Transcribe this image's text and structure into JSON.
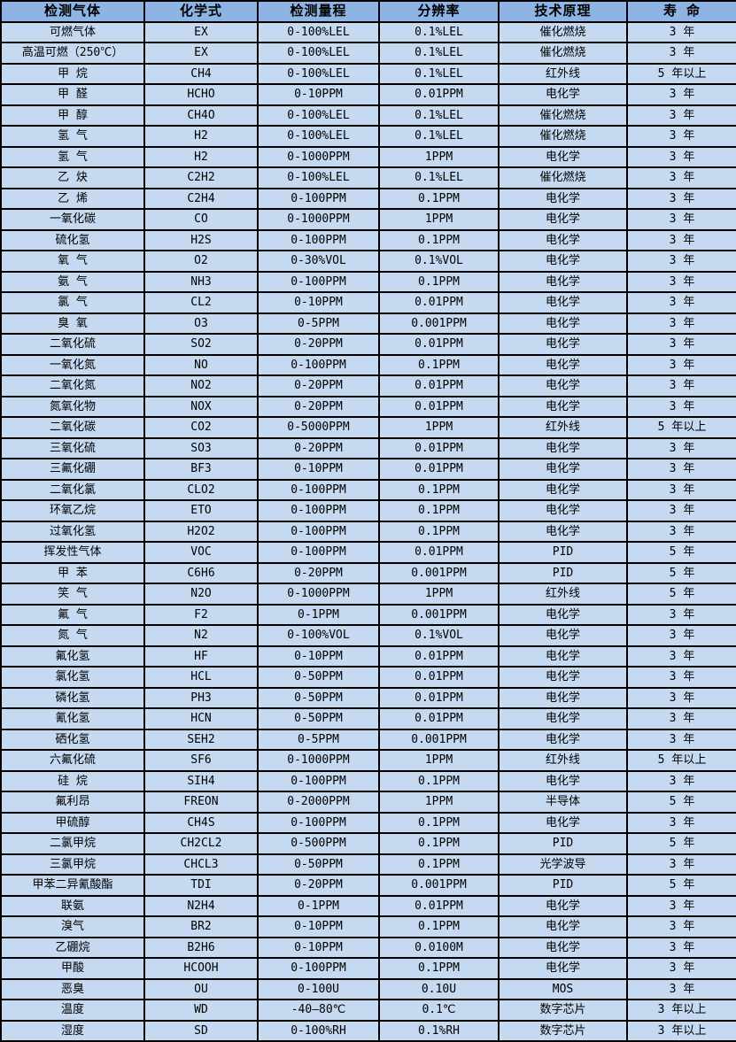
{
  "colors": {
    "header_bg": "#8DB4E2",
    "row_bg": "#C5D9F1",
    "border": "#000000",
    "text": "#000000"
  },
  "table": {
    "columns": [
      "检测气体",
      "化学式",
      "检测量程",
      "分辨率",
      "技术原理",
      "寿 命"
    ],
    "rows": [
      [
        "可燃气体",
        "EX",
        "0-100%LEL",
        "0.1%LEL",
        "催化燃烧",
        "3 年"
      ],
      [
        "高温可燃（250℃）",
        "EX",
        "0-100%LEL",
        "0.1%LEL",
        "催化燃烧",
        "3 年"
      ],
      [
        "甲 烷",
        "CH4",
        "0-100%LEL",
        "0.1%LEL",
        "红外线",
        "5 年以上"
      ],
      [
        "甲 醛",
        "HCHO",
        "0-10PPM",
        "0.01PPM",
        "电化学",
        "3 年"
      ],
      [
        "甲 醇",
        "CH4O",
        "0-100%LEL",
        "0.1%LEL",
        "催化燃烧",
        "3 年"
      ],
      [
        "氢 气",
        "H2",
        "0-100%LEL",
        "0.1%LEL",
        "催化燃烧",
        "3 年"
      ],
      [
        "氢 气",
        "H2",
        "0-1000PPM",
        "1PPM",
        "电化学",
        "3 年"
      ],
      [
        "乙 炔",
        "C2H2",
        "0-100%LEL",
        "0.1%LEL",
        "催化燃烧",
        "3 年"
      ],
      [
        "乙 烯",
        "C2H4",
        "0-100PPM",
        "0.1PPM",
        "电化学",
        "3 年"
      ],
      [
        "一氧化碳",
        "CO",
        "0-1000PPM",
        "1PPM",
        "电化学",
        "3 年"
      ],
      [
        "硫化氢",
        "H2S",
        "0-100PPM",
        "0.1PPM",
        "电化学",
        "3 年"
      ],
      [
        "氧 气",
        "O2",
        "0-30%VOL",
        "0.1%VOL",
        "电化学",
        "3 年"
      ],
      [
        "氨 气",
        "NH3",
        "0-100PPM",
        "0.1PPM",
        "电化学",
        "3 年"
      ],
      [
        "氯 气",
        "CL2",
        "0-10PPM",
        "0.01PPM",
        "电化学",
        "3 年"
      ],
      [
        "臭 氧",
        "O3",
        "0-5PPM",
        "0.001PPM",
        "电化学",
        "3 年"
      ],
      [
        "二氧化硫",
        "SO2",
        "0-20PPM",
        "0.01PPM",
        "电化学",
        "3 年"
      ],
      [
        "一氧化氮",
        "NO",
        "0-100PPM",
        "0.1PPM",
        "电化学",
        "3 年"
      ],
      [
        "二氧化氮",
        "NO2",
        "0-20PPM",
        "0.01PPM",
        "电化学",
        "3 年"
      ],
      [
        "氮氧化物",
        "NOX",
        "0-20PPM",
        "0.01PPM",
        "电化学",
        "3 年"
      ],
      [
        "二氧化碳",
        "CO2",
        "0-5000PPM",
        "1PPM",
        "红外线",
        "5 年以上"
      ],
      [
        "三氧化硫",
        "SO3",
        "0-20PPM",
        "0.01PPM",
        "电化学",
        "3 年"
      ],
      [
        "三氟化硼",
        "BF3",
        "0-10PPM",
        "0.01PPM",
        "电化学",
        "3 年"
      ],
      [
        "二氧化氯",
        "CLO2",
        "0-100PPM",
        "0.1PPM",
        "电化学",
        "3 年"
      ],
      [
        "环氧乙烷",
        "ETO",
        "0-100PPM",
        "0.1PPM",
        "电化学",
        "3 年"
      ],
      [
        "过氧化氢",
        "H2O2",
        "0-100PPM",
        "0.1PPM",
        "电化学",
        "3 年"
      ],
      [
        "挥发性气体",
        "VOC",
        "0-100PPM",
        "0.01PPM",
        "PID",
        "5 年"
      ],
      [
        "甲 苯",
        "C6H6",
        "0-20PPM",
        "0.001PPM",
        "PID",
        "5 年"
      ],
      [
        "笑 气",
        "N2O",
        "0-1000PPM",
        "1PPM",
        "红外线",
        "5 年"
      ],
      [
        "氟 气",
        "F2",
        "0-1PPM",
        "0.001PPM",
        "电化学",
        "3 年"
      ],
      [
        "氮 气",
        "N2",
        "0-100%VOL",
        "0.1%VOL",
        "电化学",
        "3 年"
      ],
      [
        "氟化氢",
        "HF",
        "0-10PPM",
        "0.01PPM",
        "电化学",
        "3 年"
      ],
      [
        "氯化氢",
        "HCL",
        "0-50PPM",
        "0.01PPM",
        "电化学",
        "3 年"
      ],
      [
        "磷化氢",
        "PH3",
        "0-50PPM",
        "0.01PPM",
        "电化学",
        "3 年"
      ],
      [
        "氰化氢",
        "HCN",
        "0-50PPM",
        "0.01PPM",
        "电化学",
        "3 年"
      ],
      [
        "硒化氢",
        "SEH2",
        "0-5PPM",
        "0.001PPM",
        "电化学",
        "3 年"
      ],
      [
        "六氟化硫",
        "SF6",
        "0-1000PPM",
        "1PPM",
        "红外线",
        "5 年以上"
      ],
      [
        "硅 烷",
        "SIH4",
        "0-100PPM",
        "0.1PPM",
        "电化学",
        "3 年"
      ],
      [
        "氟利昂",
        "FREON",
        "0-2000PPM",
        "1PPM",
        "半导体",
        "5 年"
      ],
      [
        "甲硫醇",
        "CH4S",
        "0-100PPM",
        "0.1PPM",
        "电化学",
        "3 年"
      ],
      [
        "二氯甲烷",
        "CH2CL2",
        "0-500PPM",
        "0.1PPM",
        "PID",
        "5 年"
      ],
      [
        "三氯甲烷",
        "CHCL3",
        "0-50PPM",
        "0.1PPM",
        "光学波导",
        "3 年"
      ],
      [
        "甲苯二异氰酸酯",
        "TDI",
        "0-20PPM",
        "0.001PPM",
        "PID",
        "5 年"
      ],
      [
        "联氨",
        "N2H4",
        "0-1PPM",
        "0.01PPM",
        "电化学",
        "3 年"
      ],
      [
        "溴气",
        "BR2",
        "0-10PPM",
        "0.1PPM",
        "电化学",
        "3 年"
      ],
      [
        "乙硼烷",
        "B2H6",
        "0-10PPM",
        "0.0100M",
        "电化学",
        "3 年"
      ],
      [
        "甲酸",
        "HCOOH",
        "0-100PPM",
        "0.1PPM",
        "电化学",
        "3 年"
      ],
      [
        "恶臭",
        "OU",
        "0-100U",
        "0.10U",
        "MOS",
        "3 年"
      ],
      [
        "温度",
        "WD",
        "-40—80℃",
        "0.1℃",
        "数字芯片",
        "3 年以上"
      ],
      [
        "湿度",
        "SD",
        "0-100%RH",
        "0.1%RH",
        "数字芯片",
        "3 年以上"
      ]
    ]
  }
}
